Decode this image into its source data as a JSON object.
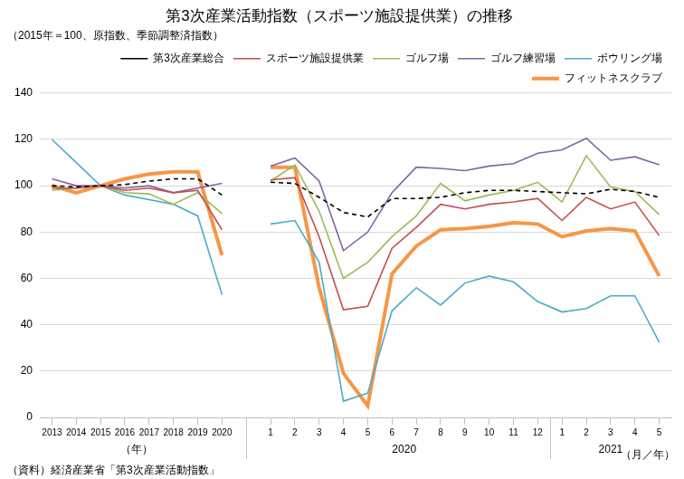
{
  "chart_data": {
    "type": "line",
    "title": "第3次産業活動指数（スポーツ施設提供業）の推移",
    "subtitle": "（2015年＝100、原指数、季節調整済指数）",
    "source": "（資料）経済産業省「第3次産業活動指数」",
    "x_label": "（月／年）",
    "categories": [
      "2013",
      "2014",
      "2015",
      "2016",
      "2017",
      "2018",
      "2019",
      "2020",
      null,
      "1",
      "2",
      "3",
      "4",
      "5",
      "6",
      "7",
      "8",
      "9",
      "10",
      "11",
      "12",
      "1",
      "2",
      "3",
      "4",
      "5"
    ],
    "category_groups": [
      {
        "label": "（年）",
        "start": 0,
        "end": 7
      },
      {
        "label": "2020",
        "start": 9,
        "end": 20
      },
      {
        "label": "2021",
        "start": 21,
        "end": 25
      }
    ],
    "series": [
      {
        "name": "第3次産業総合",
        "color": "#000000",
        "line_style": "dashed",
        "values": [
          100,
          99.5,
          100,
          100.5,
          102,
          103,
          103,
          96,
          null,
          101.5,
          101,
          95,
          88.5,
          86.5,
          94.5,
          94.5,
          95,
          97,
          98,
          98,
          97.5,
          97,
          96.5,
          98.5,
          97.5,
          95
        ]
      },
      {
        "name": "スポーツ施設提供業",
        "color": "#c0504d",
        "line_style": "solid",
        "values": [
          99,
          99,
          100,
          98,
          99,
          97,
          98,
          81,
          null,
          102.5,
          103.5,
          78,
          46.5,
          48,
          73,
          82,
          92,
          90,
          92,
          93,
          94.5,
          85,
          95,
          90,
          93,
          78.5
        ]
      },
      {
        "name": "ゴルフ場",
        "color": "#9bbb59",
        "line_style": "solid",
        "values": [
          98,
          99,
          100,
          97,
          96.5,
          92,
          97,
          88,
          null,
          102,
          109,
          89,
          60,
          67,
          78,
          87,
          101,
          93.5,
          96,
          98,
          101.5,
          93,
          113,
          99.5,
          97.5,
          87.5
        ]
      },
      {
        "name": "ゴルフ練習場",
        "color": "#8064a2",
        "line_style": "solid",
        "values": [
          103,
          100,
          100,
          99,
          100,
          97,
          99,
          101,
          null,
          108.5,
          112,
          102,
          72,
          80,
          97,
          108,
          107.5,
          106.5,
          108.5,
          109.5,
          114,
          115.5,
          120.5,
          111,
          112.5,
          109
        ]
      },
      {
        "name": "ボウリング場",
        "color": "#4bacc6",
        "line_style": "solid",
        "values": [
          120,
          110,
          100,
          96,
          94,
          92,
          87,
          53,
          null,
          83.5,
          85,
          67,
          7,
          10.5,
          46,
          56,
          48.5,
          58,
          61,
          58.5,
          50,
          45.5,
          47,
          52.5,
          52.5,
          32.5
        ]
      },
      {
        "name": "フィットネスクラブ",
        "color": "#f79646",
        "line_style": "thick",
        "values": [
          100,
          97,
          100,
          103,
          105,
          106,
          106,
          70,
          null,
          108,
          108,
          56,
          19,
          5,
          62,
          74,
          81,
          81.5,
          82.5,
          84,
          83.5,
          78,
          80.5,
          81.5,
          80.5,
          61
        ]
      }
    ],
    "ylim": [
      0,
      140
    ],
    "yticks": [
      0,
      20,
      40,
      60,
      80,
      100,
      120,
      140
    ],
    "grid": true,
    "legend": "top"
  }
}
